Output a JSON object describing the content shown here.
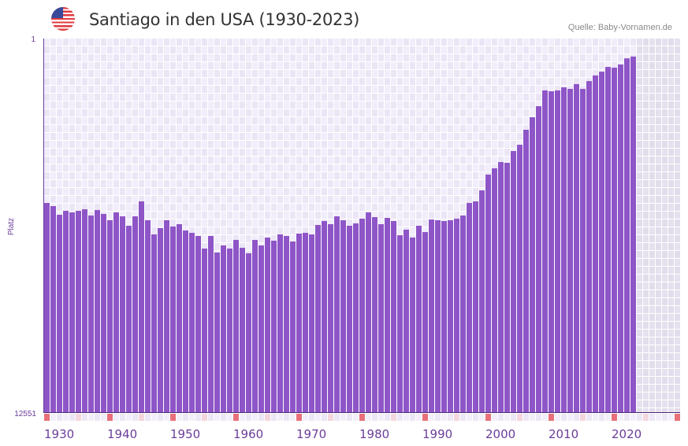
{
  "header": {
    "title": "Santiago in den USA (1930-2023)",
    "source": "Quelle: Baby-Vornamen.de",
    "flag_icon": "us-flag-icon"
  },
  "chart_data": {
    "type": "bar",
    "title": "Santiago in den USA (1930-2023)",
    "xlabel": "",
    "ylabel": "Platz",
    "y_scale": "sqrt-rank (1 at top, 12551 at bottom)",
    "ylim": [
      1,
      12551
    ],
    "y_tick_labels": [
      "1",
      "12551"
    ],
    "x_range": [
      1930,
      2030
    ],
    "x_tick_labels": [
      "1930",
      "1940",
      "1950",
      "1960",
      "1970",
      "1980",
      "1990",
      "2000",
      "2010",
      "2020"
    ],
    "x_ticks": [
      1930,
      1940,
      1950,
      1960,
      1970,
      1980,
      1990,
      2000,
      2010,
      2020
    ],
    "future_shaded_from": 2024,
    "grid": true,
    "bar_color": "#8e55c7",
    "x": [
      1930,
      1931,
      1932,
      1933,
      1934,
      1935,
      1936,
      1937,
      1938,
      1939,
      1940,
      1941,
      1942,
      1943,
      1944,
      1945,
      1946,
      1947,
      1948,
      1949,
      1950,
      1951,
      1952,
      1953,
      1954,
      1955,
      1956,
      1957,
      1958,
      1959,
      1960,
      1961,
      1962,
      1963,
      1964,
      1965,
      1966,
      1967,
      1968,
      1969,
      1970,
      1971,
      1972,
      1973,
      1974,
      1975,
      1976,
      1977,
      1978,
      1979,
      1980,
      1981,
      1982,
      1983,
      1984,
      1985,
      1986,
      1987,
      1988,
      1989,
      1990,
      1991,
      1992,
      1993,
      1994,
      1995,
      1996,
      1997,
      1998,
      1999,
      2000,
      2001,
      2002,
      2003,
      2004,
      2005,
      2006,
      2007,
      2008,
      2009,
      2010,
      2011,
      2012,
      2013,
      2014,
      2015,
      2016,
      2017,
      2018,
      2019,
      2020,
      2021,
      2022,
      2023
    ],
    "values": [
      2420,
      2513,
      2780,
      2657,
      2706,
      2657,
      2609,
      2804,
      2633,
      2755,
      2956,
      2706,
      2830,
      3138,
      2830,
      2374,
      2956,
      3435,
      3217,
      2956,
      3164,
      3085,
      3298,
      3380,
      3490,
      3949,
      3490,
      4099,
      3832,
      3949,
      3631,
      3920,
      4129,
      3631,
      3832,
      3546,
      3659,
      3435,
      3490,
      3688,
      3407,
      3380,
      3435,
      3112,
      2982,
      3085,
      2830,
      2956,
      3138,
      3059,
      2905,
      2706,
      2855,
      3085,
      2880,
      2982,
      3463,
      3271,
      3546,
      3138,
      3353,
      2931,
      2956,
      2982,
      2956,
      2905,
      2804,
      2420,
      2374,
      2064,
      1658,
      1508,
      1366,
      1383,
      1133,
      1010,
      745,
      554,
      410,
      241,
      249,
      241,
      213,
      227,
      186,
      227,
      162,
      122,
      98,
      72,
      76,
      60,
      35,
      29
    ]
  }
}
